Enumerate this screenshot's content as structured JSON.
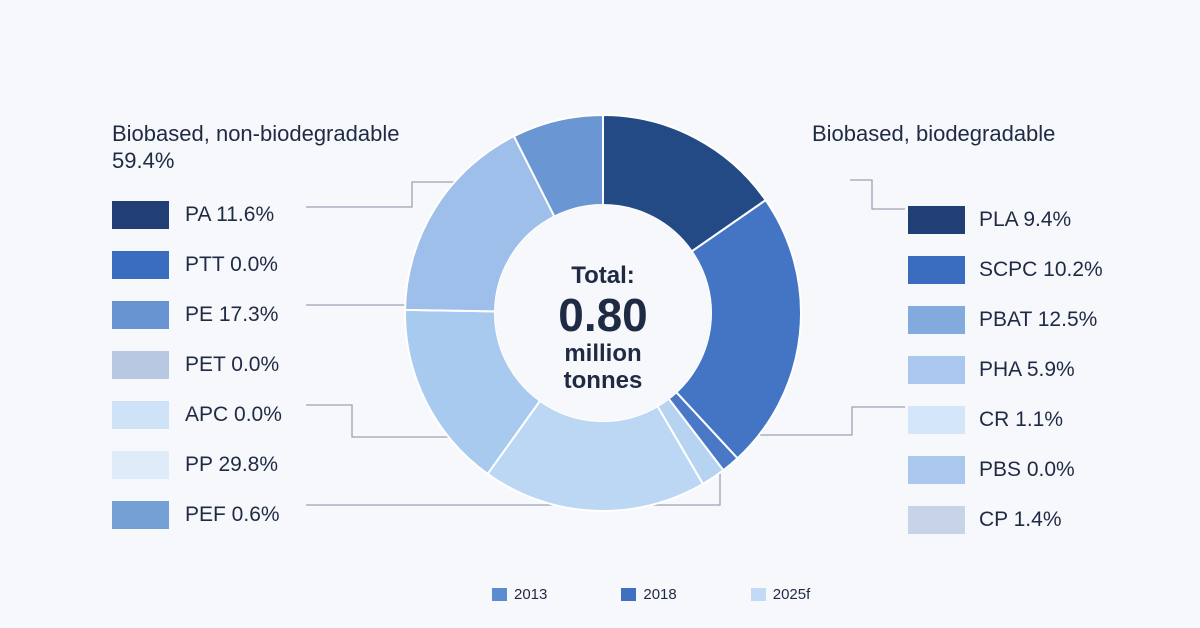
{
  "chart_data": {
    "type": "pie",
    "donut": true,
    "left_group": {
      "title": "Biobased, non-biodegradable",
      "subtitle": "59.4%",
      "items": [
        {
          "label": "PA 11.6%",
          "color": "#213f74"
        },
        {
          "label": "PTT 0.0%",
          "color": "#3a6cbf"
        },
        {
          "label": "PE 17.3%",
          "color": "#6793d1"
        },
        {
          "label": "PET 0.0%",
          "color": "#b8c8e2"
        },
        {
          "label": "APC 0.0%",
          "color": "#cfe3f8"
        },
        {
          "label": "PP 29.8%",
          "color": "#deebf9"
        },
        {
          "label": "PEF 0.6%",
          "color": "#74a0d6"
        }
      ]
    },
    "right_group": {
      "title": "Biobased, biodegradable",
      "items": [
        {
          "label": "PLA 9.4%",
          "color": "#213f74"
        },
        {
          "label": "SCPC 10.2%",
          "color": "#3a6cbf"
        },
        {
          "label": "PBAT 12.5%",
          "color": "#82aadf"
        },
        {
          "label": "PHA 5.9%",
          "color": "#a9c7ef"
        },
        {
          "label": "CR 1.1%",
          "color": "#d3e6fa"
        },
        {
          "label": "PBS 0.0%",
          "color": "#aac8ee"
        },
        {
          "label": "CP 1.4%",
          "color": "#c7d4e8"
        }
      ]
    },
    "slices": [
      {
        "value": 15.5,
        "color": "#244a86"
      },
      {
        "value": 23.0,
        "color": "#4375c4"
      },
      {
        "value": 1.5,
        "color": "#4a78c6"
      },
      {
        "value": 2.0,
        "color": "#b7d3f2"
      },
      {
        "value": 18.5,
        "color": "#bcd7f4"
      },
      {
        "value": 15.5,
        "color": "#a9caef"
      },
      {
        "value": 17.5,
        "color": "#9dbfe9"
      },
      {
        "value": 7.5,
        "color": "#6a97d3"
      }
    ],
    "center": {
      "line1": "Total:",
      "value": "0.80",
      "line3": "million",
      "line4": "tonnes"
    },
    "years_legend": [
      {
        "label": "2013",
        "color": "#5a8ccf"
      },
      {
        "label": "2018",
        "color": "#3f70c2"
      },
      {
        "label": "2025f",
        "color": "#c2daf5"
      }
    ]
  }
}
